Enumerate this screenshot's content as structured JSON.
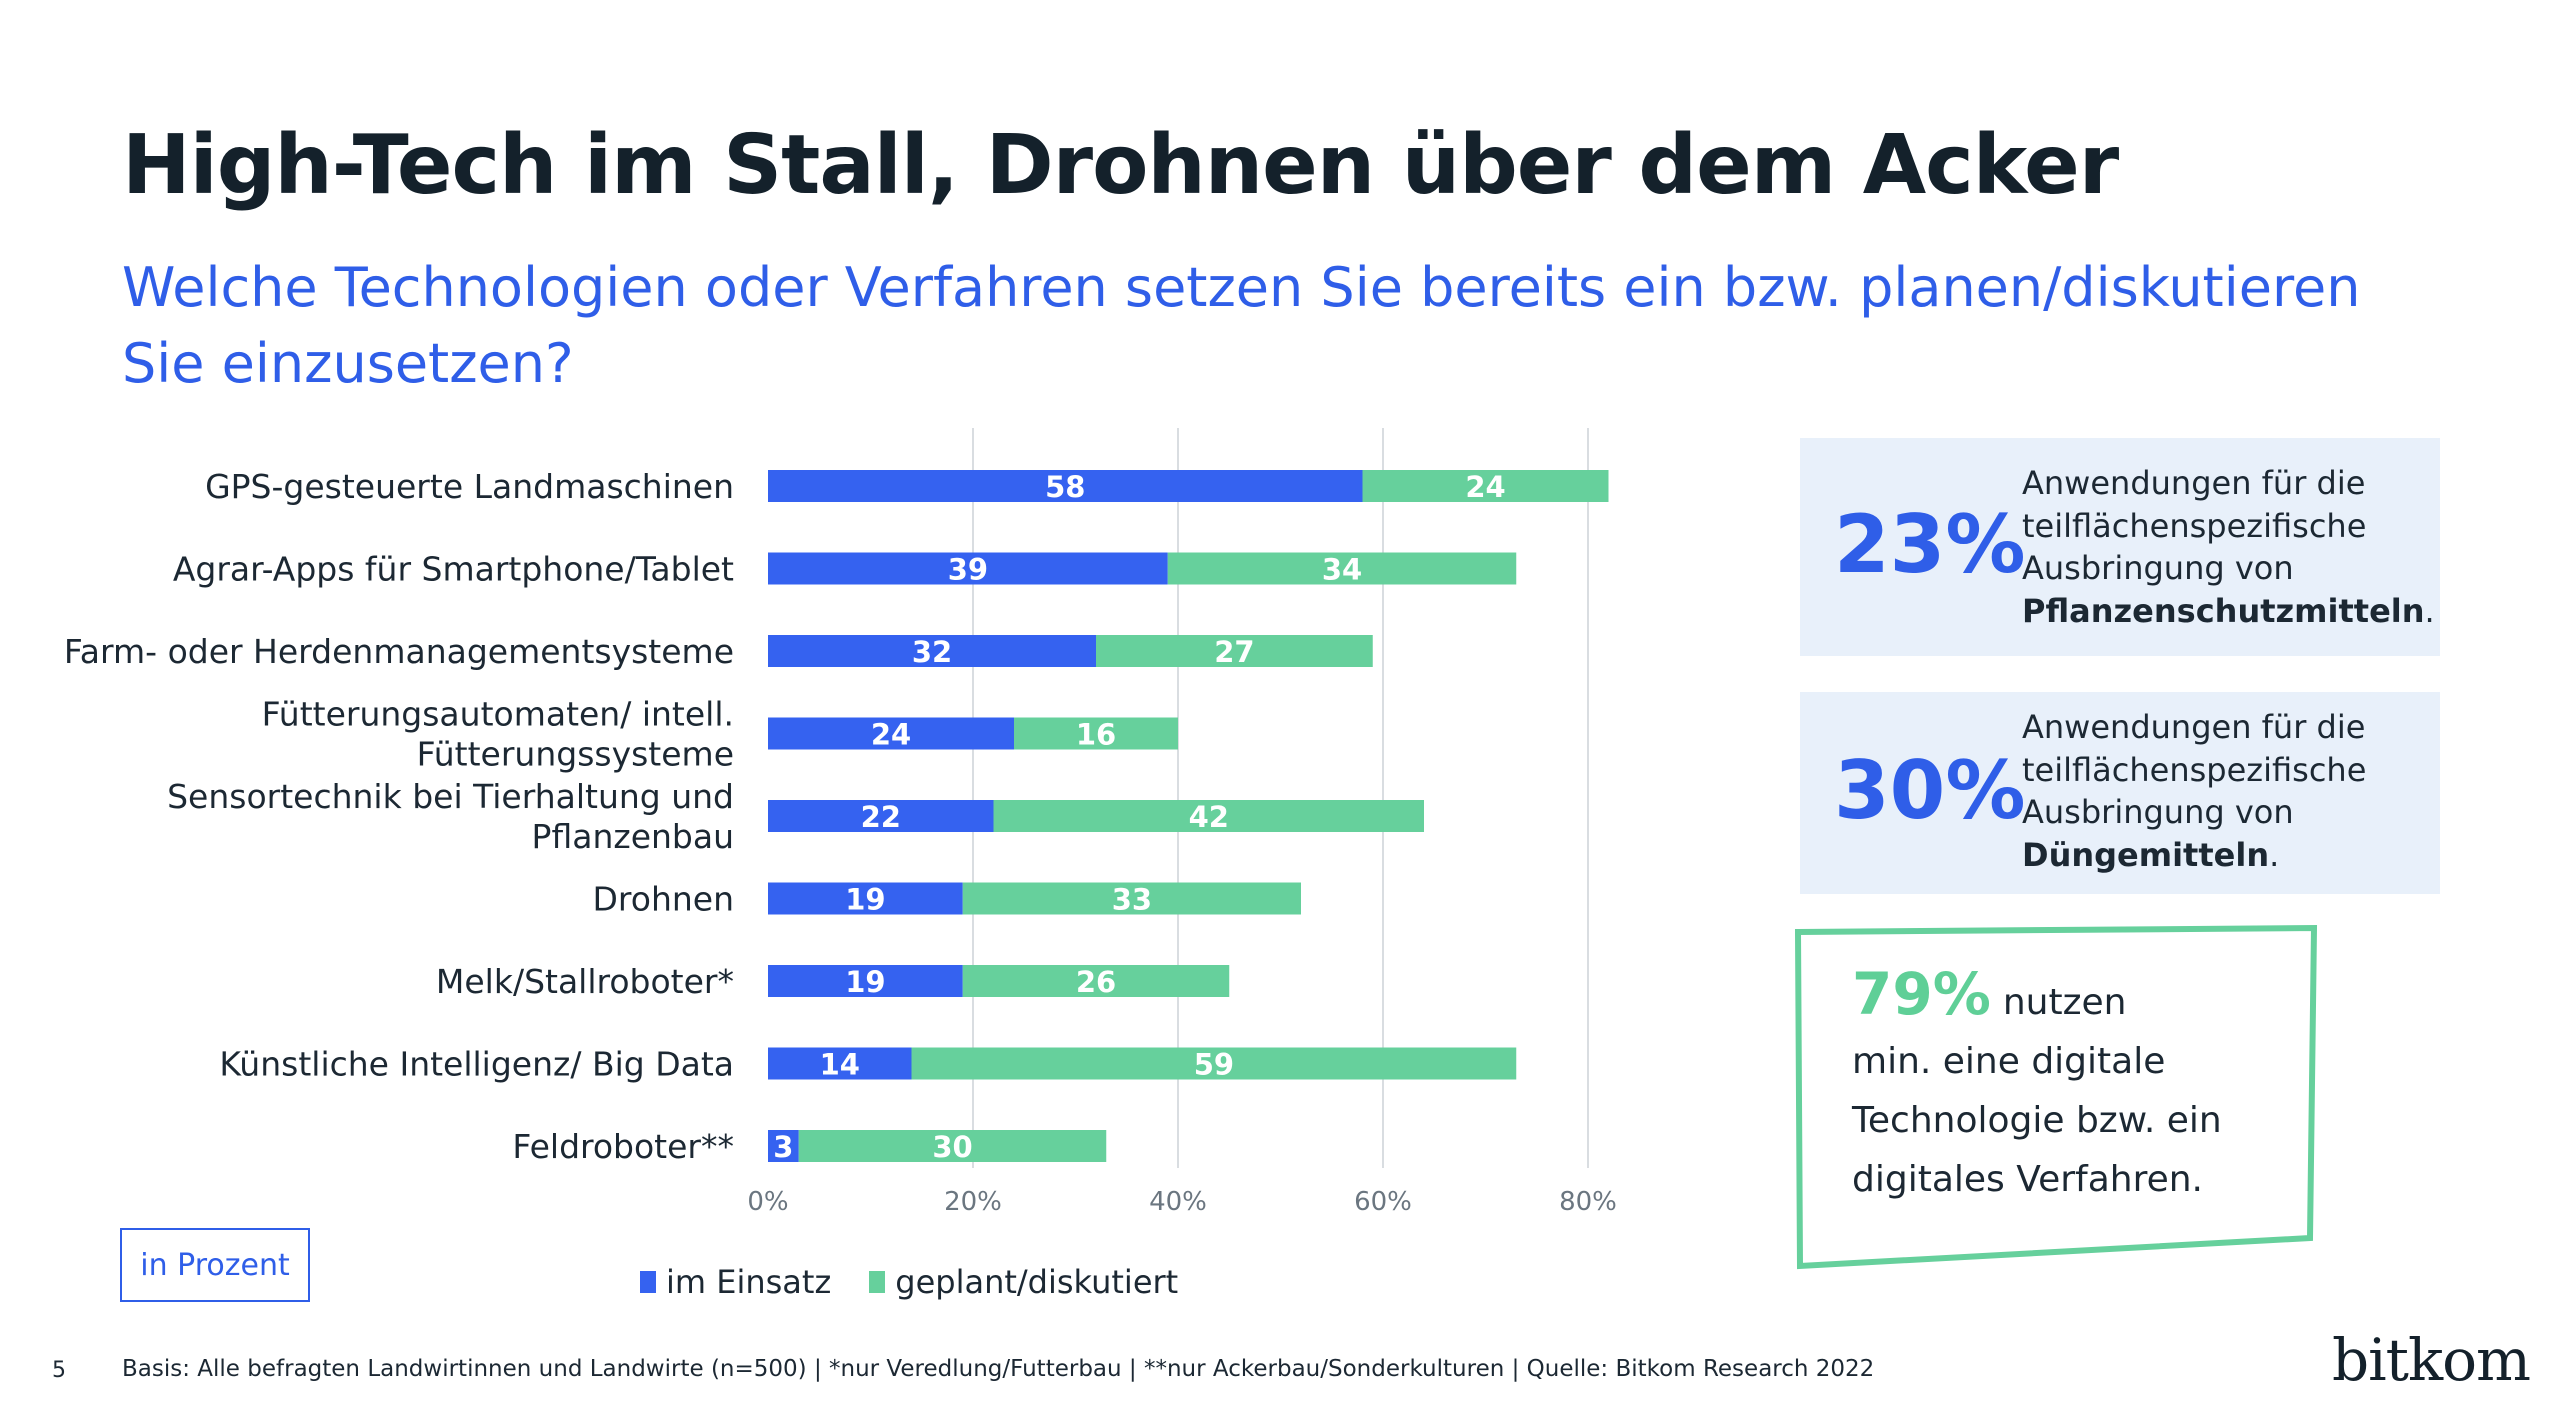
{
  "title": "High-Tech im Stall, Drohnen über dem Acker",
  "subtitle": "Welche Technologien oder Verfahren setzen Sie bereits ein bzw. planen/diskutieren Sie einzusetzen?",
  "chart_data": {
    "type": "bar",
    "orientation": "horizontal",
    "stacked": true,
    "categories": [
      [
        "GPS-gesteuerte Landmaschinen"
      ],
      [
        "Agrar-Apps für Smartphone/Tablet"
      ],
      [
        "Farm- oder Herdenmanagementsysteme"
      ],
      [
        "Fütterungsautomaten/ intell.",
        "Fütterungssysteme"
      ],
      [
        "Sensortechnik bei Tierhaltung und",
        "Pflanzenbau"
      ],
      [
        "Drohnen"
      ],
      [
        "Melk/Stallroboter*"
      ],
      [
        "Künstliche Intelligenz/ Big Data"
      ],
      [
        "Feldroboter**"
      ]
    ],
    "series": [
      {
        "name": "im Einsatz",
        "color": "#3562f0",
        "values": [
          58,
          39,
          32,
          24,
          22,
          19,
          19,
          14,
          3
        ]
      },
      {
        "name": "geplant/diskutiert",
        "color": "#66d09c",
        "values": [
          24,
          34,
          27,
          16,
          42,
          33,
          26,
          59,
          30
        ]
      }
    ],
    "xlim": [
      0,
      80
    ],
    "xticks": [
      0,
      20,
      40,
      60,
      80
    ],
    "xtick_labels": [
      "0%",
      "20%",
      "40%",
      "60%",
      "80%"
    ],
    "grid": "vertical",
    "legend": "bottom"
  },
  "unit_label": "in Prozent",
  "stats": [
    {
      "value": "23%",
      "line1": "Anwendungen für die",
      "line2": "teilflächenspezifische",
      "line3": "Ausbringung von",
      "bold": "Pflanzenschutzmitteln",
      "end": "."
    },
    {
      "value": "30%",
      "line1": "Anwendungen für die",
      "line2": "teilflächenspezifische",
      "line3": "Ausbringung von",
      "bold": "Düngemitteln",
      "end": "."
    }
  ],
  "callout": {
    "value": "79%",
    "text1": "nutzen",
    "text2": "min. eine digitale",
    "text3": "Technologie bzw. ein",
    "text4": "digitales Verfahren."
  },
  "page_number": "5",
  "footer": "Basis: Alle befragten Landwirtinnen und Landwirte (n=500) | *nur Veredlung/Futterbau | **nur Ackerbau/Sonderkulturen | Quelle: Bitkom Research 2022",
  "logo": "bitkom",
  "colors": {
    "accent_blue": "#2f5ee8",
    "green": "#5fcf97",
    "box_bg": "#e8f0fa"
  }
}
